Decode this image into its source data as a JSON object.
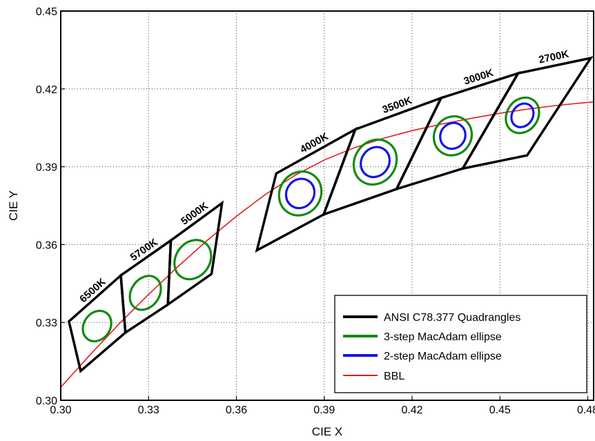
{
  "chart_data": {
    "type": "line",
    "title": "",
    "xlabel": "CIE X",
    "ylabel": "CIE Y",
    "xlim": [
      0.3,
      0.482
    ],
    "ylim": [
      0.3,
      0.45
    ],
    "xticks": [
      "0.30",
      "0.33",
      "0.36",
      "0.39",
      "0.42",
      "0.45",
      "0.48"
    ],
    "yticks": [
      "0.30",
      "0.33",
      "0.36",
      "0.39",
      "0.42",
      "0.45"
    ],
    "grid": "dotted",
    "legend_position": "bottom-right",
    "legend": [
      {
        "label": "ANSI C78.377 Quadrangles",
        "color": "#000000"
      },
      {
        "label": "3-step MacAdam ellipse",
        "color": "#138a13"
      },
      {
        "label": "2-step MacAdam ellipse",
        "color": "#1515e6"
      },
      {
        "label": "BBL",
        "color": "#e41a1a"
      }
    ],
    "quadrangles": [
      {
        "label": "6500K",
        "points": [
          [
            0.3028,
            0.3304
          ],
          [
            0.3205,
            0.3481
          ],
          [
            0.3221,
            0.3261
          ],
          [
            0.3068,
            0.3113
          ]
        ]
      },
      {
        "label": "5700K",
        "points": [
          [
            0.3205,
            0.3481
          ],
          [
            0.3376,
            0.3616
          ],
          [
            0.3366,
            0.3369
          ],
          [
            0.3221,
            0.3261
          ]
        ]
      },
      {
        "label": "5000K",
        "points": [
          [
            0.3376,
            0.3616
          ],
          [
            0.3551,
            0.376
          ],
          [
            0.3515,
            0.3487
          ],
          [
            0.3366,
            0.3369
          ]
        ]
      },
      {
        "label": "4000K",
        "points": [
          [
            0.3736,
            0.3874
          ],
          [
            0.4006,
            0.4044
          ],
          [
            0.3898,
            0.3716
          ],
          [
            0.367,
            0.3578
          ]
        ]
      },
      {
        "label": "3500K",
        "points": [
          [
            0.4006,
            0.4044
          ],
          [
            0.4299,
            0.4165
          ],
          [
            0.4147,
            0.3814
          ],
          [
            0.3898,
            0.3716
          ]
        ]
      },
      {
        "label": "3000K",
        "points": [
          [
            0.4299,
            0.4165
          ],
          [
            0.4562,
            0.426
          ],
          [
            0.4373,
            0.3893
          ],
          [
            0.4147,
            0.3814
          ]
        ]
      },
      {
        "label": "2700K",
        "points": [
          [
            0.4562,
            0.426
          ],
          [
            0.481,
            0.4319
          ],
          [
            0.4593,
            0.3944
          ],
          [
            0.4373,
            0.3893
          ]
        ]
      }
    ],
    "ellipses_3step": [
      {
        "cx": 0.3124,
        "cy": 0.3286,
        "rx": 0.0045,
        "ry": 0.0062
      },
      {
        "cx": 0.3289,
        "cy": 0.3414,
        "rx": 0.0048,
        "ry": 0.007
      },
      {
        "cx": 0.3451,
        "cy": 0.3542,
        "rx": 0.0058,
        "ry": 0.008
      },
      {
        "cx": 0.3818,
        "cy": 0.3797,
        "rx": 0.007,
        "ry": 0.0087
      },
      {
        "cx": 0.4074,
        "cy": 0.3918,
        "rx": 0.007,
        "ry": 0.009
      },
      {
        "cx": 0.4339,
        "cy": 0.4019,
        "rx": 0.0063,
        "ry": 0.0077
      },
      {
        "cx": 0.4577,
        "cy": 0.4098,
        "rx": 0.0053,
        "ry": 0.0072
      }
    ],
    "ellipses_2step": [
      {
        "cx": 0.3818,
        "cy": 0.3797,
        "rx": 0.0047,
        "ry": 0.0058
      },
      {
        "cx": 0.4074,
        "cy": 0.3918,
        "rx": 0.0047,
        "ry": 0.006
      },
      {
        "cx": 0.4339,
        "cy": 0.4019,
        "rx": 0.0042,
        "ry": 0.0051
      },
      {
        "cx": 0.4577,
        "cy": 0.4098,
        "rx": 0.0035,
        "ry": 0.0048
      }
    ],
    "bbl": {
      "x": [
        0.3,
        0.31,
        0.32,
        0.33,
        0.34,
        0.35,
        0.36,
        0.37,
        0.38,
        0.39,
        0.4,
        0.41,
        0.42,
        0.43,
        0.44,
        0.45,
        0.46,
        0.47,
        0.482
      ],
      "y": [
        0.305,
        0.3175,
        0.3295,
        0.3408,
        0.3515,
        0.3616,
        0.3709,
        0.3794,
        0.3867,
        0.3926,
        0.3972,
        0.4009,
        0.4039,
        0.4064,
        0.4086,
        0.4106,
        0.4123,
        0.4137,
        0.415
      ]
    }
  }
}
